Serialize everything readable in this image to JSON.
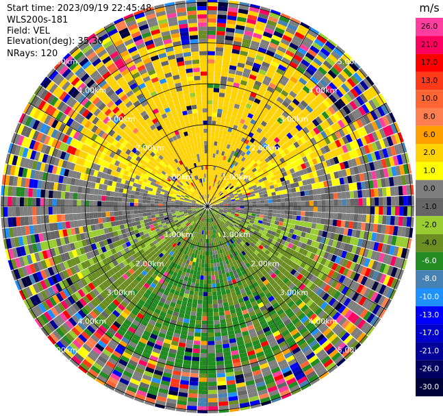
{
  "info": {
    "start_time": "Start time: 2023/09/19 22:45:48",
    "instrument": "WLS200s-181",
    "field": "Field: VEL",
    "elevation": "Elevation(deg): 35.30",
    "nrays": "NRays: 120"
  },
  "chart_data": {
    "type": "heatmap",
    "projection": "polar PPI",
    "nrays": 120,
    "range_rings_km": [
      1.0,
      2.0,
      3.0,
      4.0,
      5.0
    ],
    "range_labels": [
      "1.00km",
      "2.00km",
      "3.00km",
      "4.00km",
      "5.00km"
    ],
    "spokes_deg": [
      0,
      30,
      60,
      90,
      120,
      150,
      180,
      210,
      240,
      270,
      300,
      330
    ],
    "colorbar": {
      "unit": "m/s",
      "tick_labels": [
        "26.0",
        "21.0",
        "17.0",
        "13.0",
        "10.0",
        "8.0",
        "6.0",
        "2.0",
        "1.0",
        "0.0",
        "-1.0",
        "-2.0",
        "-4.0",
        "-6.0",
        "-8.0",
        "-10.0",
        "-13.0",
        "-17.0",
        "-21.0",
        "-26.0",
        "-30.0"
      ],
      "colors": [
        "#ff3ea0",
        "#ff0060",
        "#ff0000",
        "#ff3a1a",
        "#ff6633",
        "#ff7f50",
        "#ffa000",
        "#ffd200",
        "#ffff00",
        "#7f7f7f",
        "#666666",
        "#9acd32",
        "#6b8e23",
        "#228b22",
        "#4682b4",
        "#1e90ff",
        "#0000ff",
        "#0000cd",
        "#000099",
        "#000060",
        "#00003a"
      ]
    }
  }
}
